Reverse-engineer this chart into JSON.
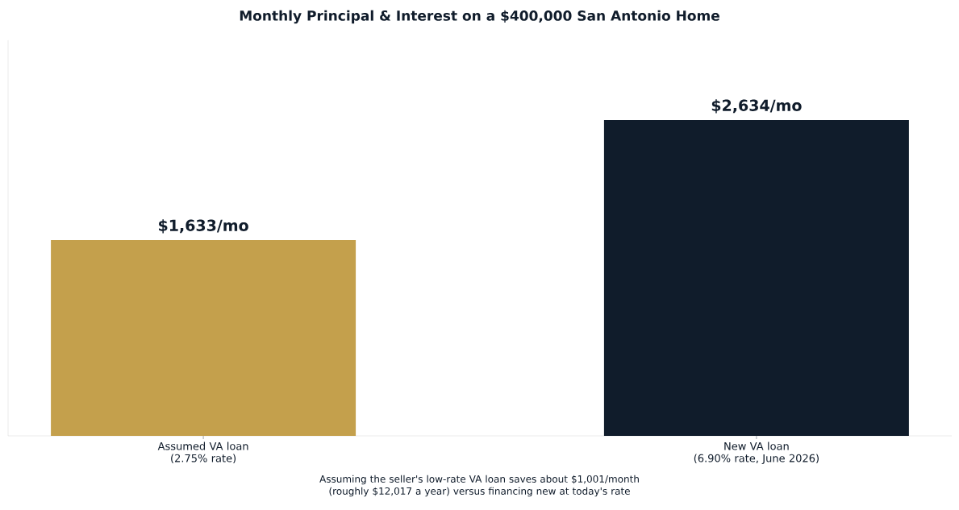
{
  "chart_data": {
    "type": "bar",
    "title": "Monthly Principal & Interest on a $400,000 San Antonio Home",
    "categories": [
      "Assumed VA loan\n(2.75% rate)",
      "New VA loan\n(6.90% rate, June 2026)"
    ],
    "values": [
      1633,
      2634
    ],
    "colors": [
      "#c4a04c",
      "#101c2b"
    ],
    "value_labels": [
      "$1,633/mo",
      "$2,634/mo"
    ],
    "tick_labels": "x",
    "annotations": [
      "Assuming the seller's low-rate VA loan saves about $1,001/month (roughly $12,017 a year) versus financing new at today's rate"
    ]
  }
}
